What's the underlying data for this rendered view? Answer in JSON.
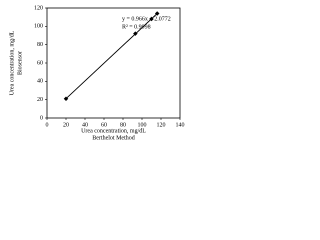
{
  "chart_data": {
    "type": "scatter",
    "x_label": [
      "Urea concentration, mg/dL",
      "Berthelot Method"
    ],
    "y_label": [
      "Urea concentration, mg/dL",
      "Biosensor"
    ],
    "annotations": [
      "y = 0.966x + 2.0772",
      "R² = 0.9998"
    ],
    "series": [
      {
        "color": "#000000",
        "x": [
          20,
          93,
          110,
          116
        ],
        "values": [
          21,
          92,
          108,
          114
        ]
      }
    ],
    "trendline": true,
    "xlim": [
      0,
      140
    ],
    "xticks": [
      0,
      20,
      40,
      60,
      80,
      100,
      120,
      140
    ],
    "ylim": [
      0,
      120
    ],
    "yticks": [
      0,
      20,
      40,
      60,
      80,
      100,
      120
    ]
  }
}
